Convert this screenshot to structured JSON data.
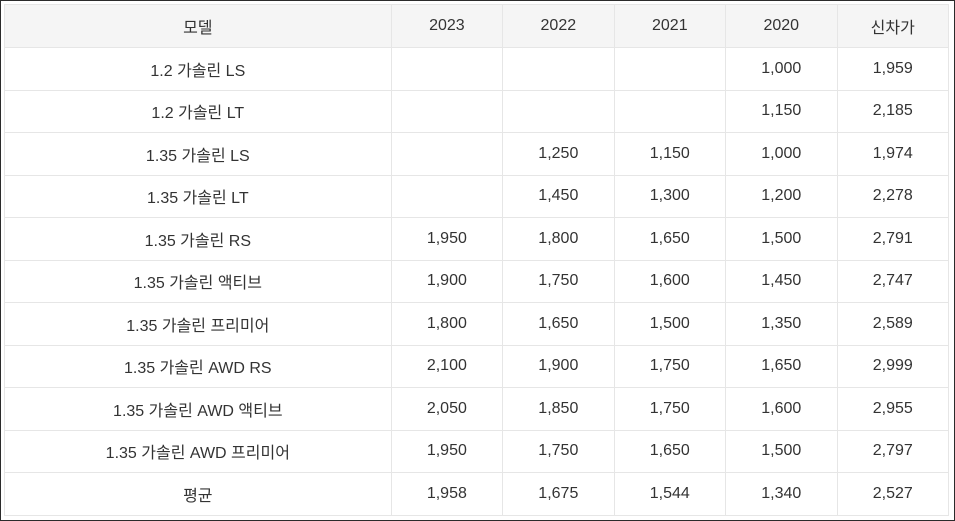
{
  "table": {
    "headers": [
      "모델",
      "2023",
      "2022",
      "2021",
      "2020",
      "신차가"
    ],
    "rows": [
      [
        "1.2 가솔린 LS",
        "",
        "",
        "",
        "1,000",
        "1,959"
      ],
      [
        "1.2 가솔린 LT",
        "",
        "",
        "",
        "1,150",
        "2,185"
      ],
      [
        "1.35 가솔린 LS",
        "",
        "1,250",
        "1,150",
        "1,000",
        "1,974"
      ],
      [
        "1.35 가솔린 LT",
        "",
        "1,450",
        "1,300",
        "1,200",
        "2,278"
      ],
      [
        "1.35 가솔린 RS",
        "1,950",
        "1,800",
        "1,650",
        "1,500",
        "2,791"
      ],
      [
        "1.35 가솔린 액티브",
        "1,900",
        "1,750",
        "1,600",
        "1,450",
        "2,747"
      ],
      [
        "1.35 가솔린 프리미어",
        "1,800",
        "1,650",
        "1,500",
        "1,350",
        "2,589"
      ],
      [
        "1.35 가솔린 AWD RS",
        "2,100",
        "1,900",
        "1,750",
        "1,650",
        "2,999"
      ],
      [
        "1.35 가솔린 AWD 액티브",
        "2,050",
        "1,850",
        "1,750",
        "1,600",
        "2,955"
      ],
      [
        "1.35 가솔린 AWD 프리미어",
        "1,950",
        "1,750",
        "1,650",
        "1,500",
        "2,797"
      ],
      [
        "평균",
        "1,958",
        "1,675",
        "1,544",
        "1,340",
        "2,527"
      ]
    ]
  }
}
